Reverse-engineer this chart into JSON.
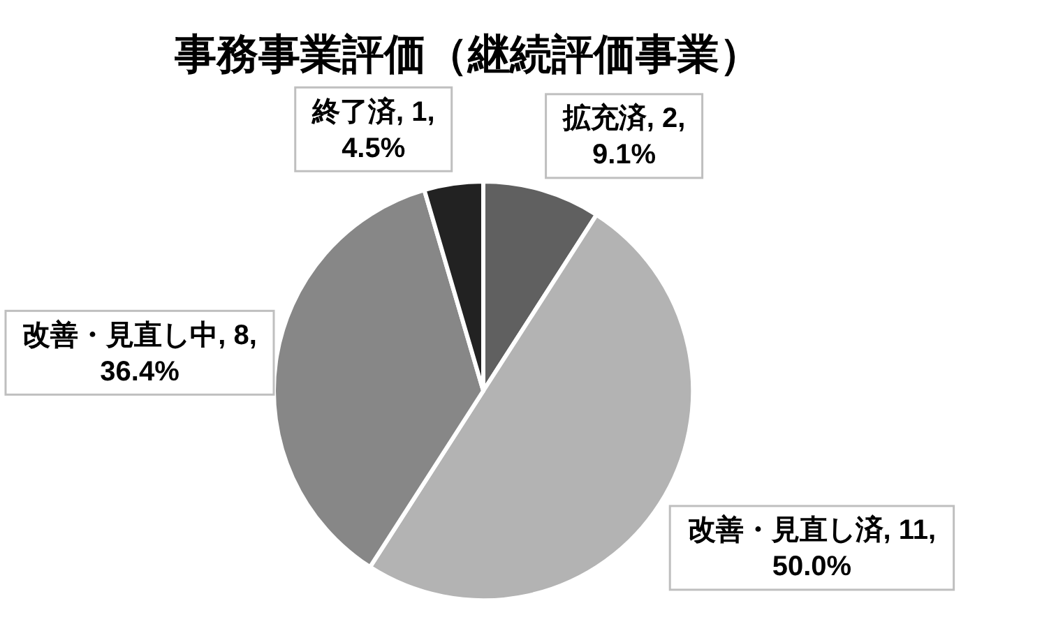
{
  "chart_data": {
    "type": "pie",
    "title": "事務事業評価（継続評価事業）",
    "categories": [
      "拡充済",
      "改善・見直し済",
      "改善・見直し中",
      "終了済"
    ],
    "values": [
      2,
      11,
      8,
      1
    ],
    "colors": [
      "#606060",
      "#b3b3b3",
      "#878787",
      "#222222"
    ],
    "value_labels": [
      "2, 9.1%",
      "11, 50.0%",
      "8, 36.4%",
      "1, 4.5%"
    ]
  }
}
